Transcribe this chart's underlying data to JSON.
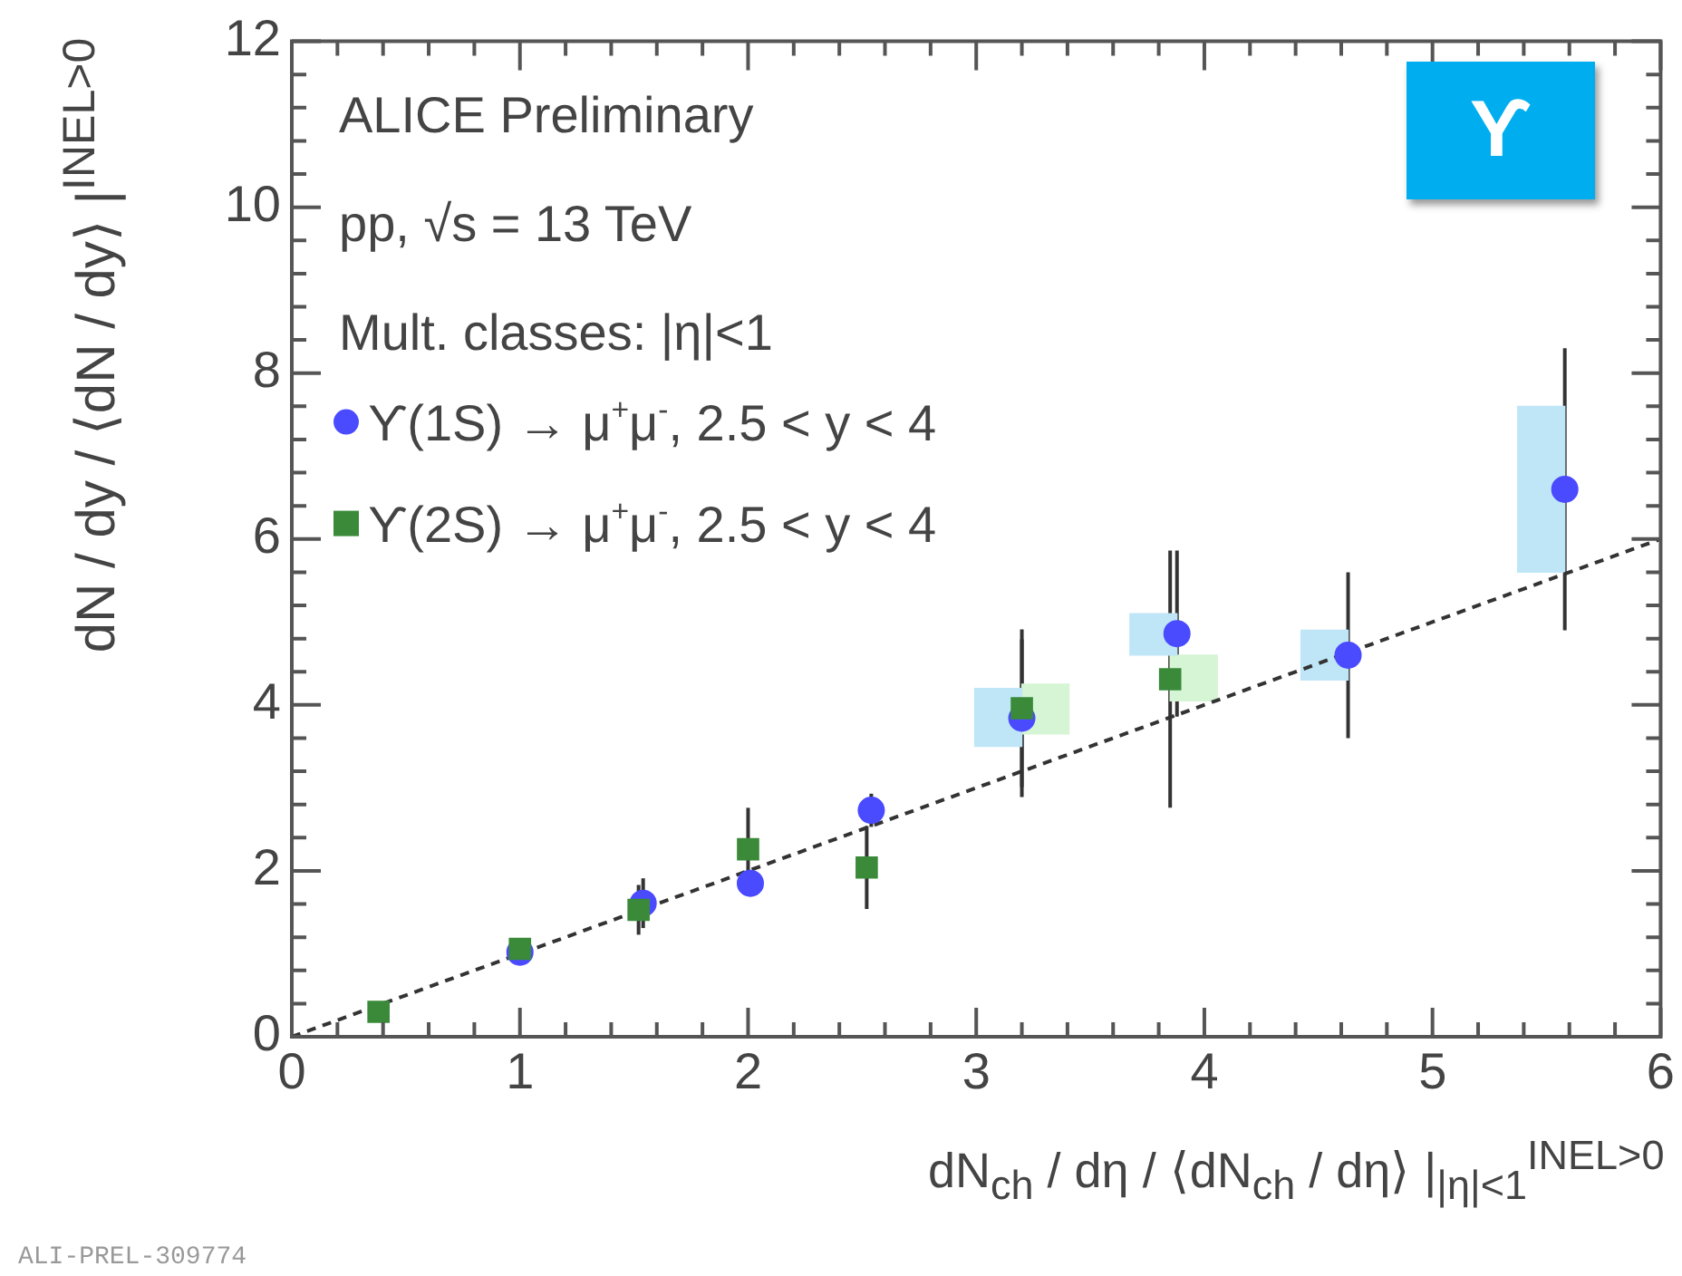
{
  "chart_data": {
    "type": "scatter",
    "xlabel": "dN$_{ch}$ / dη / ⟨dN$_{ch}$ / dη⟩ |$_{|η|<1}$$^{INEL>0}$",
    "ylabel": "dN / dy / ⟨dN / dy⟩ |$^{INEL>0}$",
    "annotations": [
      "ALICE Preliminary",
      "pp, √s = 13 TeV",
      "Mult. classes: |η|<1",
      "ϒ",
      "ALI-PREL-309774"
    ],
    "xlim": [
      0,
      6
    ],
    "ylim": [
      0,
      12
    ],
    "xticks": [
      0,
      {
        "value": 0.2,
        "label": null
      },
      {
        "value": 0.4,
        "label": null
      },
      {
        "value": 0.6,
        "label": null
      },
      {
        "value": 0.8,
        "label": null
      },
      1,
      {
        "value": 1.2,
        "label": null
      },
      {
        "value": 1.4,
        "label": null
      },
      {
        "value": 1.6,
        "label": null
      },
      {
        "value": 1.8,
        "label": null
      },
      2,
      {
        "value": 2.2,
        "label": null
      },
      {
        "value": 2.4,
        "label": null
      },
      {
        "value": 2.6,
        "label": null
      },
      {
        "value": 2.8,
        "label": null
      },
      3,
      {
        "value": 3.2,
        "label": null
      },
      {
        "value": 3.4,
        "label": null
      },
      {
        "value": 3.6,
        "label": null
      },
      {
        "value": 3.8,
        "label": null
      },
      4,
      {
        "value": 4.2,
        "label": null
      },
      {
        "value": 4.4,
        "label": null
      },
      {
        "value": 4.6,
        "label": null
      },
      {
        "value": 4.8,
        "label": null
      },
      5,
      {
        "value": 5.2,
        "label": null
      },
      {
        "value": 5.4,
        "label": null
      },
      {
        "value": 5.6,
        "label": null
      },
      {
        "value": 5.8,
        "label": null
      },
      6
    ],
    "yticks": [
      0,
      {
        "value": 0.4,
        "label": null
      },
      {
        "value": 0.8,
        "label": null
      },
      {
        "value": 1.2,
        "label": null
      },
      {
        "value": 1.6,
        "label": null
      },
      2,
      {
        "value": 2.4,
        "label": null
      },
      {
        "value": 2.8,
        "label": null
      },
      {
        "value": 3.2,
        "label": null
      },
      {
        "value": 3.6,
        "label": null
      },
      4,
      {
        "value": 4.4,
        "label": null
      },
      {
        "value": 4.8,
        "label": null
      },
      {
        "value": 5.2,
        "label": null
      },
      {
        "value": 5.6,
        "label": null
      },
      6,
      {
        "value": 6.4,
        "label": null
      },
      {
        "value": 6.8,
        "label": null
      },
      {
        "value": 7.2,
        "label": null
      },
      {
        "value": 7.6,
        "label": null
      },
      8,
      {
        "value": 8.4,
        "label": null
      },
      {
        "value": 8.8,
        "label": null
      },
      {
        "value": 9.2,
        "label": null
      },
      {
        "value": 9.6,
        "label": null
      },
      10,
      {
        "value": 10.4,
        "label": null
      },
      {
        "value": 10.8,
        "label": null
      },
      {
        "value": 11.2,
        "label": null
      },
      {
        "value": 11.6,
        "label": null
      },
      12
    ],
    "grid": false,
    "legend": "top left",
    "series": [
      {
        "type": "bar",
        "color": "#bfe6f7",
        "x": [
          3.2,
          3.88,
          4.63,
          5.58
        ],
        "base": [
          3.5,
          4.6,
          4.3,
          5.6
        ],
        "values": [
          0.7,
          0.5,
          0.6,
          2.0
        ]
      },
      {
        "type": "bar",
        "color": "#d5f5d5",
        "x": [
          3.2,
          3.85
        ],
        "base": [
          3.65,
          4.05
        ],
        "values": [
          0.6,
          0.55
        ]
      },
      {
        "type": "line",
        "color": "#333333",
        "line_style": "dashed",
        "marker": "none",
        "x": [
          0,
          6
        ],
        "values": [
          0,
          6
        ]
      },
      {
        "name": "ϒ(1S) → μ$^{+}$μ$^{-}$, 2.5 < y < 4",
        "color": "#4a4aff",
        "marker": "circle",
        "x": [
          1.0,
          1.54,
          2.01,
          2.54,
          3.2,
          3.88,
          4.63,
          5.58
        ],
        "values": [
          1.02,
          1.61,
          1.85,
          2.73,
          3.84,
          4.86,
          4.6,
          6.6
        ],
        "errors": [
          null,
          0.3,
          null,
          0.2,
          0.95,
          1.0,
          1.0,
          1.7
        ]
      },
      {
        "name": "ϒ(2S) → μ$^{+}$μ$^{-}$, 2.5 < y < 4",
        "color": "#3a8a3a",
        "marker": "square",
        "x": [
          0.38,
          1.0,
          1.52,
          2.0,
          2.52,
          3.2,
          3.85
        ],
        "values": [
          0.3,
          1.06,
          1.53,
          2.26,
          2.04,
          3.96,
          4.31
        ],
        "errors": [
          null,
          null,
          0.3,
          0.5,
          0.5,
          0.95,
          1.55
        ]
      }
    ]
  }
}
